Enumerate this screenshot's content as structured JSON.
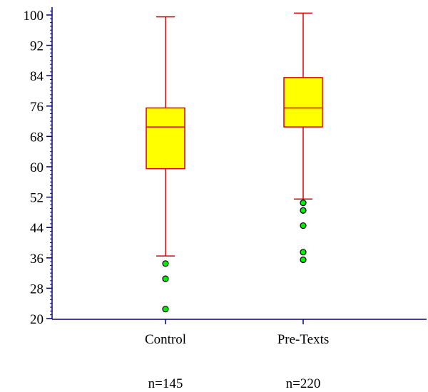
{
  "chart_data": {
    "type": "boxplot",
    "title": "",
    "xlabel": "",
    "ylabel": "",
    "ylim": [
      20,
      101.5
    ],
    "yticks": [
      20,
      28,
      36,
      44,
      52,
      60,
      68,
      76,
      84,
      92,
      100
    ],
    "ytick_labels": [
      "20",
      "28",
      "36",
      "44",
      "52",
      "60",
      "68",
      "76",
      "84",
      "92",
      "100"
    ],
    "grid": false,
    "legend": "none",
    "categories": [
      "Control",
      "Pre-Texts"
    ],
    "counts": [
      "n=145",
      "n=220"
    ],
    "boxes": [
      {
        "category": "Control",
        "whisker_low": 36.5,
        "q1": 59.5,
        "median": 70.5,
        "q3": 75.5,
        "whisker_high": 99.5,
        "outliers": [
          34.5,
          30.5,
          22.5
        ]
      },
      {
        "category": "Pre-Texts",
        "whisker_low": 51.5,
        "q1": 70.5,
        "median": 75.5,
        "q3": 83.5,
        "whisker_high": 100.5,
        "outliers": [
          50.5,
          48.5,
          44.5,
          37.5,
          35.5
        ]
      }
    ],
    "colors": {
      "box_fill": "#ffff00",
      "box_stroke": "#dd0000",
      "whisker": "#dd0000",
      "outlier_fill": "#00ee00",
      "outlier_stroke": "#000000",
      "axis": "#000080",
      "text": "#000000"
    }
  }
}
